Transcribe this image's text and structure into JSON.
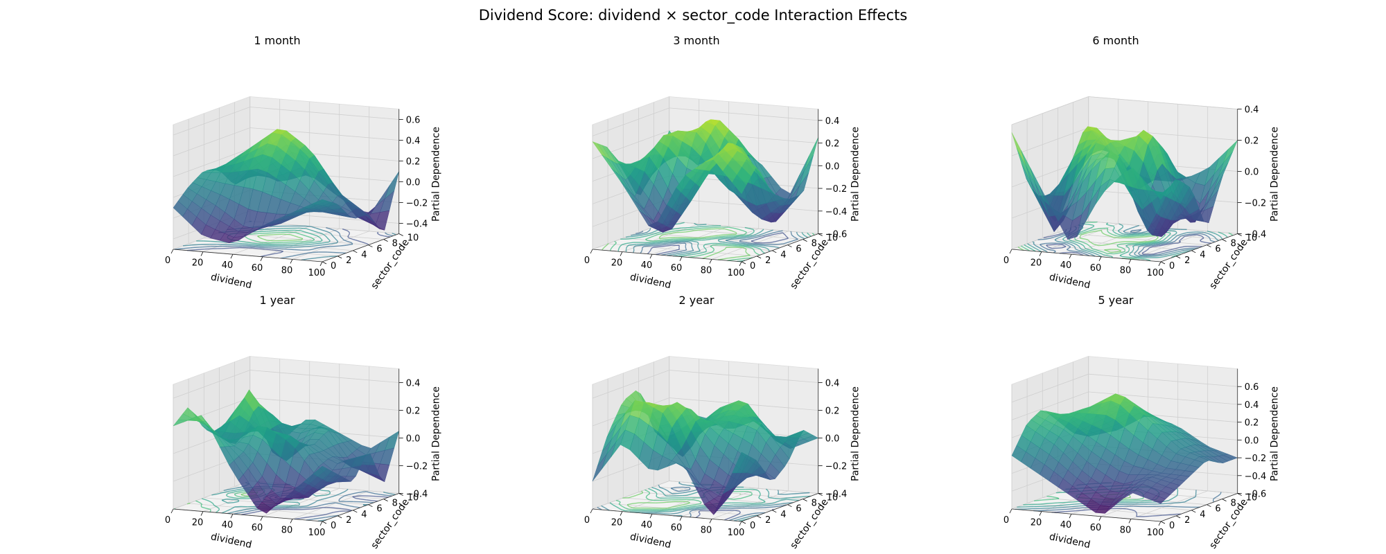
{
  "title": "Dividend Score: dividend × sector_code Interaction Effects",
  "chart_data": [
    {
      "type": "surface3d",
      "title": "1 month",
      "xlabel": "dividend",
      "ylabel": "sector_code",
      "zlabel": "Partial Dependence",
      "xlim": [
        0,
        100
      ],
      "ylim": [
        0,
        10
      ],
      "zlim": [
        -0.5,
        0.7
      ],
      "xticks": [
        "0",
        "20",
        "40",
        "60",
        "80",
        "100"
      ],
      "yticks": [
        "0",
        "2",
        "4",
        "6",
        "8",
        "10"
      ],
      "zticks": [
        "−0.4",
        "−0.2",
        "0.0",
        "0.2",
        "0.4",
        "0.6"
      ],
      "colormap": "viridis",
      "contour_projection": true,
      "grid": true,
      "surface": {
        "x": [
          0,
          20,
          40,
          60,
          80,
          100
        ],
        "y": [
          0,
          2,
          4,
          6,
          8,
          10
        ],
        "z": [
          [
            -0.1,
            -0.35,
            -0.4,
            -0.2,
            -0.05,
            0.1
          ],
          [
            0.05,
            -0.1,
            -0.3,
            -0.25,
            -0.1,
            0.0
          ],
          [
            0.15,
            0.2,
            0.3,
            0.1,
            -0.15,
            -0.2
          ],
          [
            0.1,
            0.35,
            0.6,
            0.4,
            0.0,
            -0.2
          ],
          [
            -0.1,
            0.1,
            0.3,
            0.1,
            -0.3,
            -0.45
          ],
          [
            0.0,
            -0.1,
            0.0,
            -0.2,
            -0.35,
            0.1
          ]
        ]
      }
    },
    {
      "type": "surface3d",
      "title": "3 month",
      "xlabel": "dividend",
      "ylabel": "sector_code",
      "zlabel": "Partial Dependence",
      "xlim": [
        0,
        100
      ],
      "ylim": [
        0,
        10
      ],
      "zlim": [
        -0.6,
        0.5
      ],
      "xticks": [
        "0",
        "20",
        "40",
        "60",
        "80",
        "100"
      ],
      "yticks": [
        "0",
        "2",
        "4",
        "6",
        "8",
        "10"
      ],
      "zticks": [
        "−0.6",
        "−0.4",
        "−0.2",
        "0.0",
        "0.2",
        "0.4"
      ],
      "colormap": "viridis",
      "contour_projection": true,
      "grid": true,
      "surface": {
        "x": [
          0,
          20,
          40,
          60,
          80,
          100
        ],
        "y": [
          0,
          2,
          4,
          6,
          8,
          10
        ],
        "z": [
          [
            0.35,
            0.0,
            -0.4,
            0.1,
            0.3,
            0.0
          ],
          [
            0.25,
            -0.2,
            -0.5,
            -0.1,
            0.4,
            0.2
          ],
          [
            0.0,
            0.2,
            -0.3,
            0.2,
            0.3,
            -0.1
          ],
          [
            -0.3,
            0.35,
            0.3,
            -0.2,
            -0.4,
            -0.2
          ],
          [
            -0.1,
            0.1,
            0.45,
            0.2,
            -0.5,
            -0.2
          ],
          [
            0.2,
            -0.1,
            0.1,
            0.0,
            -0.3,
            0.25
          ]
        ]
      }
    },
    {
      "type": "surface3d",
      "title": "6 month",
      "xlabel": "dividend",
      "ylabel": "sector_code",
      "zlabel": "Partial Dependence",
      "xlim": [
        0,
        100
      ],
      "ylim": [
        0,
        10
      ],
      "zlim": [
        -0.4,
        0.4
      ],
      "xticks": [
        "0",
        "20",
        "40",
        "60",
        "80",
        "100"
      ],
      "yticks": [
        "0",
        "2",
        "4",
        "6",
        "8",
        "10"
      ],
      "zticks": [
        "−0.4",
        "−0.2",
        "0.0",
        "0.2",
        "0.4"
      ],
      "colormap": "viridis",
      "contour_projection": true,
      "grid": true,
      "surface": {
        "x": [
          0,
          20,
          40,
          60,
          80,
          100
        ],
        "y": [
          0,
          2,
          4,
          6,
          8,
          10
        ],
        "z": [
          [
            0.35,
            0.0,
            -0.35,
            0.0,
            0.2,
            0.0
          ],
          [
            0.0,
            -0.35,
            0.1,
            0.3,
            -0.3,
            0.1
          ],
          [
            -0.2,
            0.1,
            0.3,
            0.0,
            -0.35,
            0.0
          ],
          [
            -0.35,
            0.35,
            0.2,
            0.35,
            -0.2,
            -0.3
          ],
          [
            -0.1,
            0.2,
            -0.2,
            0.2,
            -0.35,
            0.0
          ],
          [
            0.2,
            0.0,
            -0.1,
            -0.1,
            0.0,
            0.2
          ]
        ]
      }
    },
    {
      "type": "surface3d",
      "title": "1 year",
      "xlabel": "dividend",
      "ylabel": "sector_code",
      "zlabel": "Partial Dependence",
      "xlim": [
        0,
        100
      ],
      "ylim": [
        0,
        10
      ],
      "zlim": [
        -0.4,
        0.5
      ],
      "xticks": [
        "0",
        "20",
        "40",
        "60",
        "80",
        "100"
      ],
      "yticks": [
        "0",
        "2",
        "4",
        "6",
        "8",
        "10"
      ],
      "zticks": [
        "−0.4",
        "−0.2",
        "0.0",
        "0.2",
        "0.4"
      ],
      "colormap": "viridis",
      "contour_projection": true,
      "grid": true,
      "surface": {
        "x": [
          0,
          20,
          40,
          60,
          80,
          100
        ],
        "y": [
          0,
          2,
          4,
          6,
          8,
          10
        ],
        "z": [
          [
            0.2,
            0.3,
            -0.1,
            -0.4,
            -0.2,
            0.0
          ],
          [
            0.3,
            0.1,
            0.0,
            -0.3,
            -0.3,
            -0.1
          ],
          [
            0.1,
            0.0,
            0.2,
            0.1,
            -0.2,
            -0.2
          ],
          [
            0.0,
            0.4,
            -0.2,
            0.0,
            -0.1,
            0.0
          ],
          [
            -0.1,
            0.2,
            0.0,
            0.1,
            -0.2,
            -0.3
          ],
          [
            0.0,
            -0.1,
            0.1,
            0.0,
            -0.1,
            0.05
          ]
        ]
      }
    },
    {
      "type": "surface3d",
      "title": "2 year",
      "xlabel": "dividend",
      "ylabel": "sector_code",
      "zlabel": "Partial Dependence",
      "xlim": [
        0,
        100
      ],
      "ylim": [
        0,
        10
      ],
      "zlim": [
        -0.4,
        0.5
      ],
      "xticks": [
        "0",
        "20",
        "40",
        "60",
        "80",
        "100"
      ],
      "yticks": [
        "0",
        "2",
        "4",
        "6",
        "8",
        "10"
      ],
      "zticks": [
        "−0.4",
        "−0.2",
        "0.0",
        "0.2",
        "0.4"
      ],
      "colormap": "viridis",
      "contour_projection": true,
      "grid": true,
      "surface": {
        "x": [
          0,
          20,
          40,
          60,
          80,
          100
        ],
        "y": [
          0,
          2,
          4,
          6,
          8,
          10
        ],
        "z": [
          [
            -0.2,
            0.1,
            -0.1,
            0.0,
            -0.4,
            0.1
          ],
          [
            0.1,
            0.4,
            0.3,
            -0.2,
            -0.3,
            0.0
          ],
          [
            0.3,
            0.2,
            0.35,
            0.1,
            -0.1,
            -0.2
          ],
          [
            0.35,
            0.0,
            0.1,
            0.2,
            0.2,
            -0.1
          ],
          [
            0.0,
            -0.2,
            0.2,
            0.3,
            0.0,
            0.1
          ],
          [
            -0.1,
            0.1,
            0.0,
            0.1,
            -0.1,
            0.0
          ]
        ]
      }
    },
    {
      "type": "surface3d",
      "title": "5 year",
      "xlabel": "dividend",
      "ylabel": "sector_code",
      "zlabel": "Partial Dependence",
      "xlim": [
        0,
        100
      ],
      "ylim": [
        0,
        10
      ],
      "zlim": [
        -0.6,
        0.8
      ],
      "xticks": [
        "0",
        "20",
        "40",
        "60",
        "80",
        "100"
      ],
      "yticks": [
        "0",
        "2",
        "4",
        "6",
        "8",
        "10"
      ],
      "zticks": [
        "−0.6",
        "−0.4",
        "−0.2",
        "0.0",
        "0.2",
        "0.4",
        "0.6"
      ],
      "colormap": "viridis",
      "contour_projection": true,
      "grid": true,
      "surface": {
        "x": [
          0,
          20,
          40,
          60,
          80,
          100
        ],
        "y": [
          0,
          2,
          4,
          6,
          8,
          10
        ],
        "z": [
          [
            0.0,
            -0.2,
            -0.4,
            -0.6,
            -0.3,
            -0.4
          ],
          [
            0.3,
            0.1,
            -0.2,
            -0.4,
            -0.2,
            -0.3
          ],
          [
            0.4,
            0.3,
            0.1,
            -0.1,
            -0.2,
            -0.2
          ],
          [
            0.2,
            0.4,
            0.6,
            0.3,
            0.0,
            -0.1
          ],
          [
            0.0,
            0.2,
            0.4,
            0.2,
            0.0,
            -0.2
          ],
          [
            -0.1,
            0.0,
            0.2,
            0.1,
            -0.1,
            -0.2
          ]
        ]
      }
    }
  ]
}
